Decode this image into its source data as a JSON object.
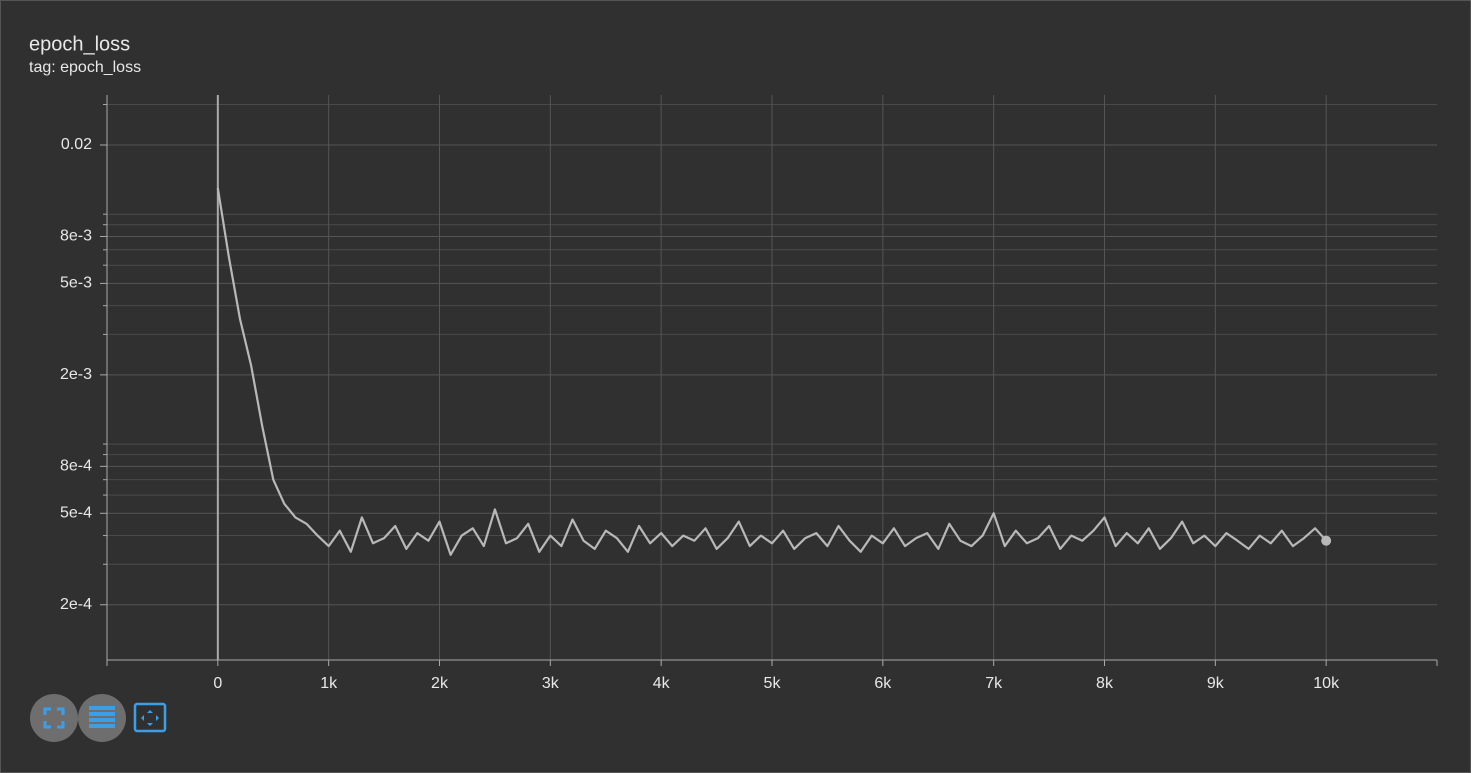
{
  "chart_data": {
    "type": "line",
    "title": "epoch_loss",
    "subtitle": "tag: epoch_loss",
    "x": [
      0,
      100,
      200,
      300,
      400,
      500,
      600,
      700,
      800,
      900,
      1000,
      1100,
      1200,
      1300,
      1400,
      1500,
      1600,
      1700,
      1800,
      1900,
      2000,
      2100,
      2200,
      2300,
      2400,
      2500,
      2600,
      2700,
      2800,
      2900,
      3000,
      3100,
      3200,
      3300,
      3400,
      3500,
      3600,
      3700,
      3800,
      3900,
      4000,
      4100,
      4200,
      4300,
      4400,
      4500,
      4600,
      4700,
      4800,
      4900,
      5000,
      5100,
      5200,
      5300,
      5400,
      5500,
      5600,
      5700,
      5800,
      5900,
      6000,
      6100,
      6200,
      6300,
      6400,
      6500,
      6600,
      6700,
      6800,
      6900,
      7000,
      7100,
      7200,
      7300,
      7400,
      7500,
      7600,
      7700,
      7800,
      7900,
      8000,
      8100,
      8200,
      8300,
      8400,
      8500,
      8600,
      8700,
      8800,
      8900,
      9000,
      9100,
      9200,
      9300,
      9400,
      9500,
      9600,
      9700,
      9800,
      9900,
      10000
    ],
    "values": [
      0.013,
      0.0065,
      0.0035,
      0.0022,
      0.0012,
      0.0007,
      0.00055,
      0.00048,
      0.00045,
      0.0004,
      0.00036,
      0.00042,
      0.00034,
      0.00048,
      0.00037,
      0.00039,
      0.00044,
      0.00035,
      0.00041,
      0.00038,
      0.00046,
      0.00033,
      0.0004,
      0.00043,
      0.00036,
      0.00052,
      0.00037,
      0.00039,
      0.00045,
      0.00034,
      0.0004,
      0.00036,
      0.00047,
      0.00038,
      0.00035,
      0.00042,
      0.00039,
      0.00034,
      0.00044,
      0.00037,
      0.00041,
      0.00036,
      0.0004,
      0.00038,
      0.00043,
      0.00035,
      0.00039,
      0.00046,
      0.00036,
      0.0004,
      0.00037,
      0.00042,
      0.00035,
      0.00039,
      0.00041,
      0.00036,
      0.00044,
      0.00038,
      0.00034,
      0.0004,
      0.00037,
      0.00043,
      0.00036,
      0.00039,
      0.00041,
      0.00035,
      0.00045,
      0.00038,
      0.00036,
      0.0004,
      0.0005,
      0.00036,
      0.00042,
      0.00037,
      0.00039,
      0.00044,
      0.00035,
      0.0004,
      0.00038,
      0.00042,
      0.00048,
      0.00036,
      0.00041,
      0.00037,
      0.00043,
      0.00035,
      0.00039,
      0.00046,
      0.00037,
      0.0004,
      0.00036,
      0.00041,
      0.00038,
      0.00035,
      0.0004,
      0.00037,
      0.00042,
      0.00036,
      0.00039,
      0.00043,
      0.00038
    ],
    "color": "#b8b8b8",
    "xlim": [
      -1000,
      11000
    ],
    "xticks": [
      0,
      {
        "value": 1000,
        "label": "1k"
      },
      {
        "value": 2000,
        "label": "2k"
      },
      {
        "value": 3000,
        "label": "3k"
      },
      {
        "value": 4000,
        "label": "4k"
      },
      {
        "value": 5000,
        "label": "5k"
      },
      {
        "value": 6000,
        "label": "6k"
      },
      {
        "value": 7000,
        "label": "7k"
      },
      {
        "value": 8000,
        "label": "8k"
      },
      {
        "value": 9000,
        "label": "9k"
      },
      {
        "value": 10000,
        "label": "10k"
      }
    ],
    "ylim": [
      0.000115,
      0.033
    ],
    "yscale": "log",
    "yticks": [
      0.02,
      {
        "value": 0.008,
        "label": "8e-3"
      },
      {
        "value": 0.005,
        "label": "5e-3"
      },
      {
        "value": 0.002,
        "label": "2e-3"
      },
      {
        "value": 0.0008,
        "label": "8e-4"
      },
      {
        "value": 0.0005,
        "label": "5e-4"
      },
      {
        "value": 0.0002,
        "label": "2e-4"
      }
    ],
    "minor_yticks": [
      0.03,
      0.01,
      0.009,
      0.007,
      0.006,
      0.004,
      0.003,
      0.001,
      0.0009,
      0.0007,
      0.0006,
      0.0004,
      0.0003
    ],
    "grid": true
  }
}
